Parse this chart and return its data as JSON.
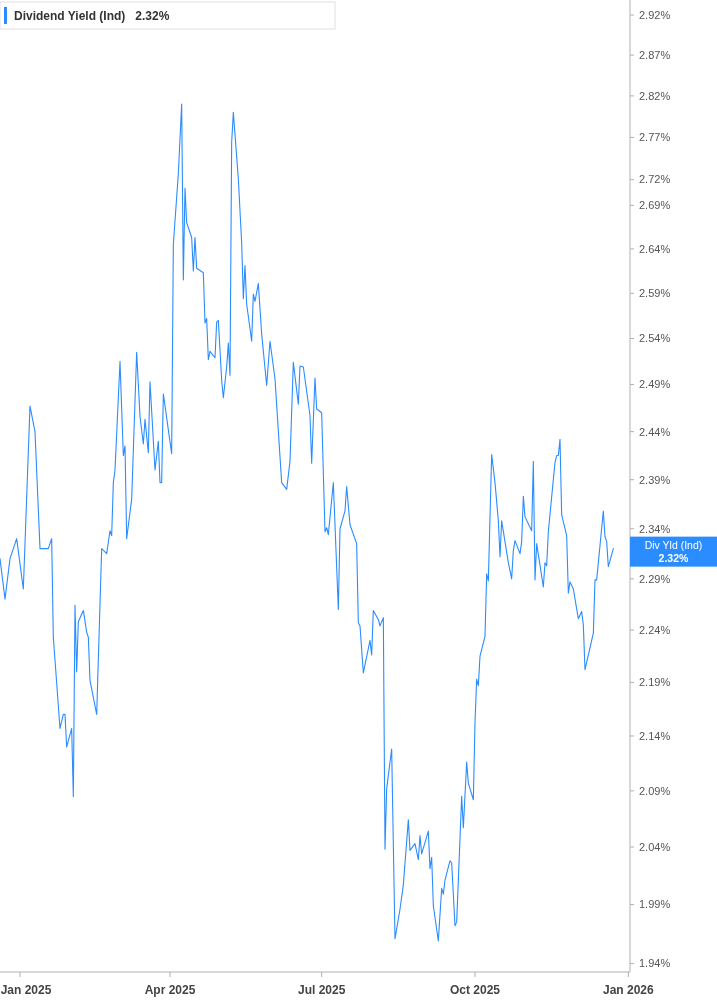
{
  "chart_data": {
    "type": "line",
    "log": "y",
    "legend": "top left",
    "marker": "none",
    "line_style": "solid",
    "grid": false,
    "xlim": [
      "2024-12-20",
      "2026-01-02"
    ],
    "xticks": [
      {
        "value": "2025-01-01",
        "label": "Jan 2025"
      },
      {
        "value": "2025-04-01",
        "label": "Apr 2025"
      },
      {
        "value": "2025-07-01",
        "label": "Jul 2025"
      },
      {
        "value": "2025-10-01",
        "label": "Oct 2025"
      },
      {
        "value": "2026-01-01",
        "label": "Jan 2026"
      }
    ],
    "ylim": [
      1.933,
      2.939
    ],
    "yticks": [
      {
        "value": 1.94,
        "label": "1.94%"
      },
      {
        "value": 1.99,
        "label": "1.99%"
      },
      {
        "value": 2.04,
        "label": "2.04%"
      },
      {
        "value": 2.09,
        "label": "2.09%"
      },
      {
        "value": 2.14,
        "label": "2.14%"
      },
      {
        "value": 2.19,
        "label": "2.19%"
      },
      {
        "value": 2.24,
        "label": "2.24%"
      },
      {
        "value": 2.29,
        "label": "2.29%"
      },
      {
        "value": 2.34,
        "label": "2.34%"
      },
      {
        "value": 2.39,
        "label": "2.39%"
      },
      {
        "value": 2.44,
        "label": "2.44%"
      },
      {
        "value": 2.49,
        "label": "2.49%"
      },
      {
        "value": 2.54,
        "label": "2.54%"
      },
      {
        "value": 2.59,
        "label": "2.59%"
      },
      {
        "value": 2.64,
        "label": "2.64%"
      },
      {
        "value": 2.69,
        "label": "2.69%"
      },
      {
        "value": 2.72,
        "label": "2.72%"
      },
      {
        "value": 2.77,
        "label": "2.77%"
      },
      {
        "value": 2.82,
        "label": "2.82%"
      },
      {
        "value": 2.87,
        "label": "2.87%"
      },
      {
        "value": 2.92,
        "label": "2.92%"
      }
    ],
    "annotations": [
      "2.32%",
      "Div Yld (Ind)",
      "2.32%"
    ],
    "series": [
      {
        "name": "Dividend Yield (Ind)",
        "color": "#2b8cff",
        "x": [
          "2024-12-20",
          "2024-12-23",
          "2024-12-26",
          "2024-12-30",
          "2025-01-03",
          "2025-01-07",
          "2025-01-10",
          "2025-01-13",
          "2025-01-18",
          "2025-01-20",
          "2025-01-21",
          "2025-01-25",
          "2025-01-27",
          "2025-01-28",
          "2025-01-29",
          "2025-02-01",
          "2025-02-02",
          "2025-02-03",
          "2025-02-04",
          "2025-02-05",
          "2025-02-08",
          "2025-02-10",
          "2025-02-11",
          "2025-02-12",
          "2025-02-16",
          "2025-02-19",
          "2025-02-22",
          "2025-02-24",
          "2025-02-25",
          "2025-02-26",
          "2025-02-27",
          "2025-03-02",
          "2025-03-04",
          "2025-03-05",
          "2025-03-06",
          "2025-03-09",
          "2025-03-12",
          "2025-03-14",
          "2025-03-16",
          "2025-03-17",
          "2025-03-19",
          "2025-03-20",
          "2025-03-23",
          "2025-03-25",
          "2025-03-26",
          "2025-03-27",
          "2025-03-28",
          "2025-04-02",
          "2025-04-03",
          "2025-04-06",
          "2025-04-08",
          "2025-04-09",
          "2025-04-10",
          "2025-04-11",
          "2025-04-14",
          "2025-04-15",
          "2025-04-16",
          "2025-04-17",
          "2025-04-21",
          "2025-04-22",
          "2025-04-23",
          "2025-04-24",
          "2025-04-25",
          "2025-04-28",
          "2025-04-29",
          "2025-04-30",
          "2025-05-02",
          "2025-05-03",
          "2025-05-05",
          "2025-05-06",
          "2025-05-07",
          "2025-05-08",
          "2025-05-09",
          "2025-05-12",
          "2025-05-14",
          "2025-05-15",
          "2025-05-16",
          "2025-05-17",
          "2025-05-20",
          "2025-05-21",
          "2025-05-22",
          "2025-05-24",
          "2025-05-26",
          "2025-05-29",
          "2025-05-31",
          "2025-06-03",
          "2025-06-07",
          "2025-06-10",
          "2025-06-12",
          "2025-06-14",
          "2025-06-17",
          "2025-06-18",
          "2025-06-20",
          "2025-06-24",
          "2025-06-25",
          "2025-06-27",
          "2025-06-28",
          "2025-07-01",
          "2025-07-03",
          "2025-07-04",
          "2025-07-05",
          "2025-07-08",
          "2025-07-11",
          "2025-07-12",
          "2025-07-15",
          "2025-07-16",
          "2025-07-18",
          "2025-07-22",
          "2025-07-23",
          "2025-07-24",
          "2025-07-26",
          "2025-07-30",
          "2025-07-31",
          "2025-08-01",
          "2025-08-04",
          "2025-08-05",
          "2025-08-07",
          "2025-08-08",
          "2025-08-09",
          "2025-08-12",
          "2025-08-14",
          "2025-08-17",
          "2025-08-19",
          "2025-08-22",
          "2025-08-23",
          "2025-08-26",
          "2025-08-28",
          "2025-08-29",
          "2025-08-30",
          "2025-09-03",
          "2025-09-04",
          "2025-09-05",
          "2025-09-06",
          "2025-09-09",
          "2025-09-11",
          "2025-09-12",
          "2025-09-13",
          "2025-09-16",
          "2025-09-17",
          "2025-09-19",
          "2025-09-20",
          "2025-09-23",
          "2025-09-24",
          "2025-09-26",
          "2025-09-27",
          "2025-09-30",
          "2025-10-01",
          "2025-10-02",
          "2025-10-03",
          "2025-10-04",
          "2025-10-07",
          "2025-10-08",
          "2025-10-09",
          "2025-10-11",
          "2025-10-13",
          "2025-10-15",
          "2025-10-16",
          "2025-10-17",
          "2025-10-21",
          "2025-10-23",
          "2025-10-24",
          "2025-10-25",
          "2025-10-28",
          "2025-10-29",
          "2025-10-30",
          "2025-10-31",
          "2025-11-04",
          "2025-11-05",
          "2025-11-06",
          "2025-11-07",
          "2025-11-11",
          "2025-11-12",
          "2025-11-13",
          "2025-11-14",
          "2025-11-18",
          "2025-11-19",
          "2025-11-20",
          "2025-11-21",
          "2025-11-22",
          "2025-11-25",
          "2025-11-26",
          "2025-11-27",
          "2025-11-29",
          "2025-12-02",
          "2025-12-04",
          "2025-12-05",
          "2025-12-06",
          "2025-12-11",
          "2025-12-12",
          "2025-12-13",
          "2025-12-17",
          "2025-12-18",
          "2025-12-19",
          "2025-12-20",
          "2025-12-23"
        ],
        "values": [
          2.31,
          2.27,
          2.31,
          2.33,
          2.28,
          2.467,
          2.44,
          2.32,
          2.32,
          2.33,
          2.233,
          2.147,
          2.16,
          2.16,
          2.13,
          2.147,
          2.085,
          2.264,
          2.2,
          2.248,
          2.259,
          2.238,
          2.233,
          2.192,
          2.16,
          2.32,
          2.315,
          2.338,
          2.333,
          2.387,
          2.4,
          2.515,
          2.415,
          2.425,
          2.33,
          2.37,
          2.525,
          2.456,
          2.427,
          2.453,
          2.418,
          2.493,
          2.4,
          2.43,
          2.387,
          2.387,
          2.48,
          2.417,
          2.645,
          2.727,
          2.81,
          2.605,
          2.71,
          2.67,
          2.653,
          2.615,
          2.653,
          2.618,
          2.613,
          2.557,
          2.562,
          2.517,
          2.526,
          2.519,
          2.558,
          2.56,
          2.495,
          2.476,
          2.509,
          2.535,
          2.5,
          2.764,
          2.8,
          2.721,
          2.647,
          2.584,
          2.621,
          2.578,
          2.537,
          2.589,
          2.581,
          2.601,
          2.545,
          2.489,
          2.537,
          2.496,
          2.387,
          2.38,
          2.409,
          2.514,
          2.469,
          2.51,
          2.509,
          2.457,
          2.407,
          2.497,
          2.464,
          2.46,
          2.337,
          2.341,
          2.334,
          2.387,
          2.26,
          2.34,
          2.358,
          2.383,
          2.344,
          2.325,
          2.247,
          2.244,
          2.199,
          2.23,
          2.216,
          2.259,
          2.25,
          2.244,
          2.252,
          2.038,
          2.092,
          2.128,
          1.961,
          1.986,
          2.007,
          2.064,
          2.037,
          2.043,
          2.029,
          2.05,
          2.034,
          2.054,
          2.021,
          2.031,
          1.989,
          1.959,
          2.004,
          1.999,
          2.011,
          2.028,
          2.026,
          1.972,
          1.975,
          2.085,
          2.057,
          2.116,
          2.097,
          2.082,
          2.153,
          2.193,
          2.187,
          2.215,
          2.234,
          2.295,
          2.288,
          2.416,
          2.387,
          2.348,
          2.312,
          2.348,
          2.306,
          2.29,
          2.318,
          2.328,
          2.315,
          2.327,
          2.373,
          2.352,
          2.338,
          2.409,
          2.289,
          2.325,
          2.282,
          2.306,
          2.303,
          2.337,
          2.408,
          2.415,
          2.415,
          2.432,
          2.354,
          2.333,
          2.276,
          2.287,
          2.28,
          2.251,
          2.258,
          2.245,
          2.202,
          2.237,
          2.289,
          2.289,
          2.358,
          2.332,
          2.327,
          2.302,
          2.32
        ]
      }
    ]
  }
}
